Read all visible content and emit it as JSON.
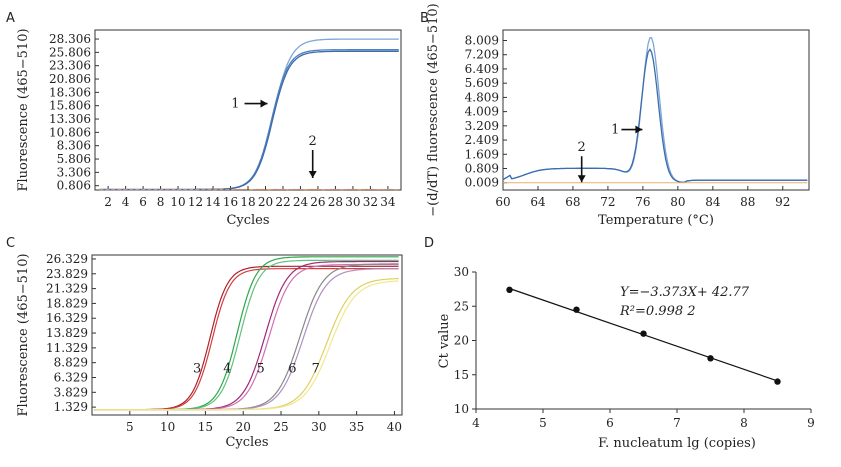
{
  "panel_letters": [
    "A",
    "B",
    "C",
    "D"
  ],
  "chart_data": [
    {
      "id": "A",
      "type": "line",
      "xlabel": "Cycles",
      "ylabel": "Fluorescence (465−510)",
      "xlim": [
        0.5,
        35.5
      ],
      "ylim": [
        0,
        30
      ],
      "x_ticks": [
        "2",
        "4",
        "6",
        "8",
        "10",
        "12",
        "14",
        "16",
        "18",
        "20",
        "22",
        "24",
        "26",
        "28",
        "30",
        "32",
        "34"
      ],
      "y_ticks": [
        "0.806",
        "3.306",
        "5.806",
        "8.306",
        "10.806",
        "13.306",
        "15.806",
        "18.306",
        "20.806",
        "23.306",
        "25.806",
        "28.306"
      ],
      "series": [
        {
          "name": "",
          "color": "#7ea6d9",
          "plateau": 28.2,
          "midpoint": 20.9,
          "slope": 1.0
        },
        {
          "name": "",
          "color": "#4f7fbe",
          "plateau": 26.2,
          "midpoint": 20.7,
          "slope": 1.05
        },
        {
          "name": "",
          "color": "#3b6cab",
          "plateau": 25.9,
          "midpoint": 20.8,
          "slope": 1.05
        },
        {
          "name": "",
          "color": "#e8915a",
          "plateau": 0,
          "midpoint": 0,
          "slope": 0
        }
      ],
      "annotations": [
        {
          "text": "1",
          "x": 17.6,
          "y": 16.2,
          "arrow": "right"
        },
        {
          "text": "2",
          "x": 25.4,
          "y": 7.5,
          "arrow": "down"
        }
      ]
    },
    {
      "id": "B",
      "type": "line",
      "xlabel": "Temperature (°C)",
      "ylabel": "−(d/dT) fluorescence (465−510)",
      "xlim": [
        60,
        95
      ],
      "ylim": [
        -0.4,
        8.6
      ],
      "x_ticks": [
        "60",
        "64",
        "68",
        "72",
        "76",
        "80",
        "84",
        "88",
        "92"
      ],
      "y_ticks": [
        "0.009",
        "0.809",
        "1.609",
        "2.409",
        "3.209",
        "4.009",
        "4.809",
        "5.609",
        "6.409",
        "7.209",
        "8.009"
      ],
      "series": [
        {
          "name": "",
          "color": "#7ea6d9",
          "peak_x": 76.9,
          "peak_y": 8.1
        },
        {
          "name": "",
          "color": "#3b6cab",
          "peak_x": 76.8,
          "peak_y": 7.4
        },
        {
          "name": "",
          "color": "#e8b070",
          "peak_x": 0,
          "peak_y": 0
        }
      ],
      "annotations": [
        {
          "text": "1",
          "x": 74.0,
          "y": 3.0,
          "arrow": "right"
        },
        {
          "text": "2",
          "x": 69.0,
          "y": 1.5,
          "arrow": "down"
        }
      ]
    },
    {
      "id": "C",
      "type": "line",
      "xlabel": "Cycles",
      "ylabel": "Fluorescence (465−510)",
      "xlim": [
        0,
        41
      ],
      "ylim": [
        0,
        27
      ],
      "x_ticks": [
        "5",
        "10",
        "15",
        "20",
        "25",
        "30",
        "35",
        "40"
      ],
      "y_ticks": [
        "1.329",
        "3.829",
        "6.329",
        "8.829",
        "11.329",
        "13.829",
        "16.329",
        "18.829",
        "21.329",
        "23.829",
        "26.329"
      ],
      "series": [
        {
          "name": "",
          "color": "#b02030",
          "plateau": 24.2,
          "midpoint": 15.6,
          "slope": 0.85
        },
        {
          "name": "",
          "color": "#d04040",
          "plateau": 23.8,
          "midpoint": 15.9,
          "slope": 0.85
        },
        {
          "name": "",
          "color": "#2ea84a",
          "plateau": 25.8,
          "midpoint": 19.2,
          "slope": 0.8
        },
        {
          "name": "",
          "color": "#64c080",
          "plateau": 25.2,
          "midpoint": 19.6,
          "slope": 0.8
        },
        {
          "name": "",
          "color": "#a02878",
          "plateau": 25.0,
          "midpoint": 22.9,
          "slope": 0.7
        },
        {
          "name": "",
          "color": "#d070b0",
          "plateau": 24.5,
          "midpoint": 23.4,
          "slope": 0.7
        },
        {
          "name": "",
          "color": "#888888",
          "plateau": 24.6,
          "midpoint": 27.5,
          "slope": 0.65
        },
        {
          "name": "",
          "color": "#b090c0",
          "plateau": 23.8,
          "midpoint": 27.9,
          "slope": 0.65
        },
        {
          "name": "",
          "color": "#e0d060",
          "plateau": 22.2,
          "midpoint": 31.0,
          "slope": 0.6
        },
        {
          "name": "",
          "color": "#f0e890",
          "plateau": 21.8,
          "midpoint": 31.5,
          "slope": 0.6
        }
      ],
      "annotations": [
        {
          "text": "3",
          "x": 13.9,
          "y": 7.2
        },
        {
          "text": "4",
          "x": 17.9,
          "y": 7.2
        },
        {
          "text": "5",
          "x": 22.3,
          "y": 7.2
        },
        {
          "text": "6",
          "x": 26.5,
          "y": 7.2
        },
        {
          "text": "7",
          "x": 29.6,
          "y": 7.2
        }
      ]
    },
    {
      "id": "D",
      "type": "scatter",
      "xlabel": "F. nucleatum lg (copies)",
      "ylabel": "Ct value",
      "xlim": [
        4,
        9
      ],
      "ylim": [
        10,
        30
      ],
      "x_ticks": [
        "4",
        "5",
        "6",
        "7",
        "8",
        "9"
      ],
      "y_ticks": [
        "10",
        "15",
        "20",
        "25",
        "30"
      ],
      "points": [
        {
          "x": 4.5,
          "y": 27.4
        },
        {
          "x": 5.5,
          "y": 24.5
        },
        {
          "x": 6.5,
          "y": 21.0
        },
        {
          "x": 7.5,
          "y": 17.4
        },
        {
          "x": 8.5,
          "y": 14.0
        }
      ],
      "fit": {
        "slope": -3.373,
        "intercept": 42.77
      },
      "equation_text": "Y=−3.373X+ 42.77",
      "r2_text": "R²=0.998 2"
    }
  ]
}
